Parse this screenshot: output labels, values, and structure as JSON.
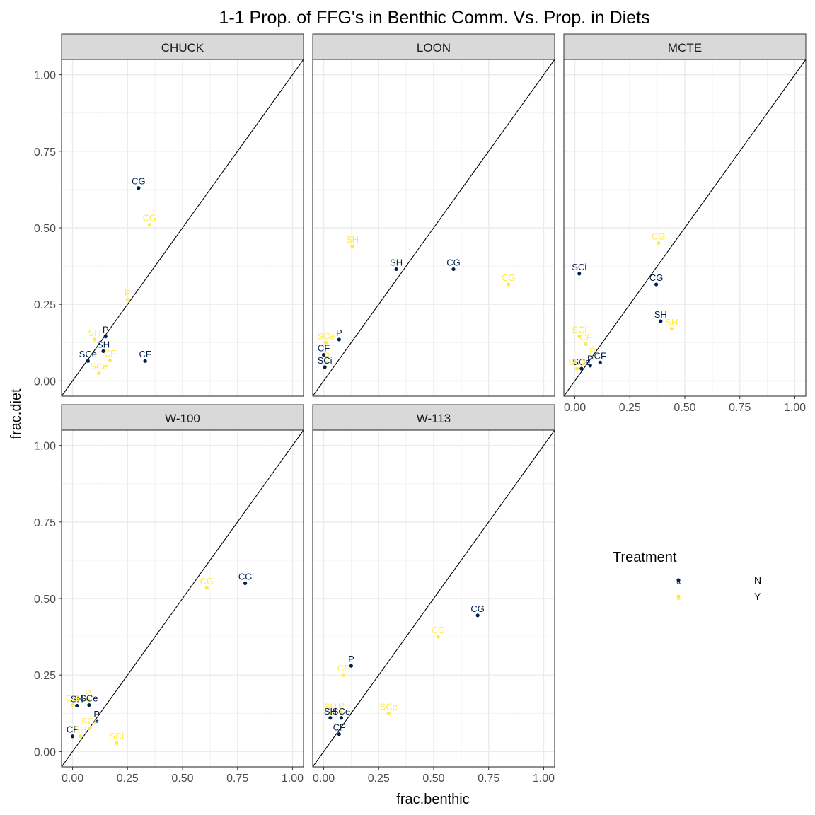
{
  "chart_data": {
    "type": "scatter",
    "title": "1-1 Prop. of FFG's in Benthic Comm. Vs. Prop. in Diets",
    "xlabel": "frac.benthic",
    "ylabel": "frac.diet",
    "xlim": [
      -0.05,
      1.05
    ],
    "ylim": [
      -0.05,
      1.05
    ],
    "xticks": [
      0.0,
      0.25,
      0.5,
      0.75,
      1.0
    ],
    "xtick_labels": [
      "0.00",
      "0.25",
      "0.50",
      "0.75",
      "1.00"
    ],
    "yticks": [
      0.0,
      0.25,
      0.5,
      0.75,
      1.0
    ],
    "ytick_labels": [
      "0.00",
      "0.25",
      "0.50",
      "0.75",
      "1.00"
    ],
    "reference_line": "y = x",
    "grid": true,
    "legend": {
      "title": "Treatment",
      "position": "right",
      "entries": [
        {
          "key": "N",
          "label": "N",
          "color": "#00204D"
        },
        {
          "key": "Y",
          "label": "Y",
          "color": "#FFEA46"
        }
      ]
    },
    "panels": [
      {
        "name": "CHUCK",
        "points": [
          {
            "label": "CG",
            "x": 0.3,
            "y": 0.63,
            "treatment": "N"
          },
          {
            "label": "CG",
            "x": 0.35,
            "y": 0.51,
            "treatment": "Y"
          },
          {
            "label": "P",
            "x": 0.25,
            "y": 0.265,
            "treatment": "Y"
          },
          {
            "label": "P",
            "x": 0.15,
            "y": 0.145,
            "treatment": "N"
          },
          {
            "label": "SH",
            "x": 0.1,
            "y": 0.135,
            "treatment": "Y"
          },
          {
            "label": "SH",
            "x": 0.14,
            "y": 0.097,
            "treatment": "N"
          },
          {
            "label": "CF",
            "x": 0.17,
            "y": 0.068,
            "treatment": "Y"
          },
          {
            "label": "SCe",
            "x": 0.07,
            "y": 0.065,
            "treatment": "N"
          },
          {
            "label": "CF",
            "x": 0.33,
            "y": 0.065,
            "treatment": "N"
          },
          {
            "label": "SCe",
            "x": 0.12,
            "y": 0.025,
            "treatment": "Y"
          }
        ]
      },
      {
        "name": "LOON",
        "points": [
          {
            "label": "SH",
            "x": 0.13,
            "y": 0.44,
            "treatment": "Y"
          },
          {
            "label": "SH",
            "x": 0.33,
            "y": 0.365,
            "treatment": "N"
          },
          {
            "label": "CG",
            "x": 0.59,
            "y": 0.365,
            "treatment": "N"
          },
          {
            "label": "CG",
            "x": 0.84,
            "y": 0.315,
            "treatment": "Y"
          },
          {
            "label": "P",
            "x": 0.07,
            "y": 0.135,
            "treatment": "N"
          },
          {
            "label": "SCe",
            "x": 0.01,
            "y": 0.125,
            "treatment": "Y"
          },
          {
            "label": "CF",
            "x": 0.0,
            "y": 0.085,
            "treatment": "N"
          },
          {
            "label": "P",
            "x": 0.015,
            "y": 0.06,
            "treatment": "Y"
          },
          {
            "label": "SCi",
            "x": 0.005,
            "y": 0.045,
            "treatment": "N"
          }
        ]
      },
      {
        "name": "MCTE",
        "points": [
          {
            "label": "CG",
            "x": 0.38,
            "y": 0.45,
            "treatment": "Y"
          },
          {
            "label": "SCi",
            "x": 0.02,
            "y": 0.35,
            "treatment": "N"
          },
          {
            "label": "CG",
            "x": 0.37,
            "y": 0.315,
            "treatment": "N"
          },
          {
            "label": "SH",
            "x": 0.39,
            "y": 0.195,
            "treatment": "N"
          },
          {
            "label": "SH",
            "x": 0.44,
            "y": 0.17,
            "treatment": "Y"
          },
          {
            "label": "SCi",
            "x": 0.02,
            "y": 0.145,
            "treatment": "Y"
          },
          {
            "label": "CF",
            "x": 0.05,
            "y": 0.12,
            "treatment": "Y"
          },
          {
            "label": "P",
            "x": 0.08,
            "y": 0.075,
            "treatment": "Y"
          },
          {
            "label": "CF",
            "x": 0.115,
            "y": 0.06,
            "treatment": "N"
          },
          {
            "label": "P",
            "x": 0.07,
            "y": 0.05,
            "treatment": "N"
          },
          {
            "label": "SCe",
            "x": 0.03,
            "y": 0.04,
            "treatment": "N"
          },
          {
            "label": "SCe",
            "x": 0.01,
            "y": 0.04,
            "treatment": "Y"
          }
        ]
      },
      {
        "name": "W-100",
        "points": [
          {
            "label": "CG",
            "x": 0.785,
            "y": 0.55,
            "treatment": "N"
          },
          {
            "label": "CG",
            "x": 0.61,
            "y": 0.535,
            "treatment": "Y"
          },
          {
            "label": "P",
            "x": 0.07,
            "y": 0.17,
            "treatment": "Y"
          },
          {
            "label": "SH",
            "x": 0.02,
            "y": 0.15,
            "treatment": "N"
          },
          {
            "label": "SCe",
            "x": 0.075,
            "y": 0.152,
            "treatment": "N"
          },
          {
            "label": "CG",
            "x": 0.0,
            "y": 0.152,
            "treatment": "Y"
          },
          {
            "label": "P",
            "x": 0.11,
            "y": 0.1,
            "treatment": "N"
          },
          {
            "label": "SCe",
            "x": 0.08,
            "y": 0.077,
            "treatment": "Y"
          },
          {
            "label": "CF",
            "x": 0.0,
            "y": 0.05,
            "treatment": "N"
          },
          {
            "label": "SH",
            "x": 0.035,
            "y": 0.05,
            "treatment": "Y"
          },
          {
            "label": "SCi",
            "x": 0.2,
            "y": 0.028,
            "treatment": "Y"
          }
        ]
      },
      {
        "name": "W-113",
        "points": [
          {
            "label": "CG",
            "x": 0.7,
            "y": 0.445,
            "treatment": "N"
          },
          {
            "label": "CG",
            "x": 0.52,
            "y": 0.375,
            "treatment": "Y"
          },
          {
            "label": "P",
            "x": 0.125,
            "y": 0.28,
            "treatment": "N"
          },
          {
            "label": "CF",
            "x": 0.09,
            "y": 0.25,
            "treatment": "Y"
          },
          {
            "label": "SH",
            "x": 0.03,
            "y": 0.125,
            "treatment": "Y"
          },
          {
            "label": "P",
            "x": 0.08,
            "y": 0.128,
            "treatment": "Y"
          },
          {
            "label": "SCe",
            "x": 0.295,
            "y": 0.125,
            "treatment": "Y"
          },
          {
            "label": "SH",
            "x": 0.03,
            "y": 0.11,
            "treatment": "N"
          },
          {
            "label": "SCe",
            "x": 0.08,
            "y": 0.11,
            "treatment": "N"
          },
          {
            "label": "CF",
            "x": 0.07,
            "y": 0.057,
            "treatment": "N"
          }
        ]
      }
    ]
  }
}
